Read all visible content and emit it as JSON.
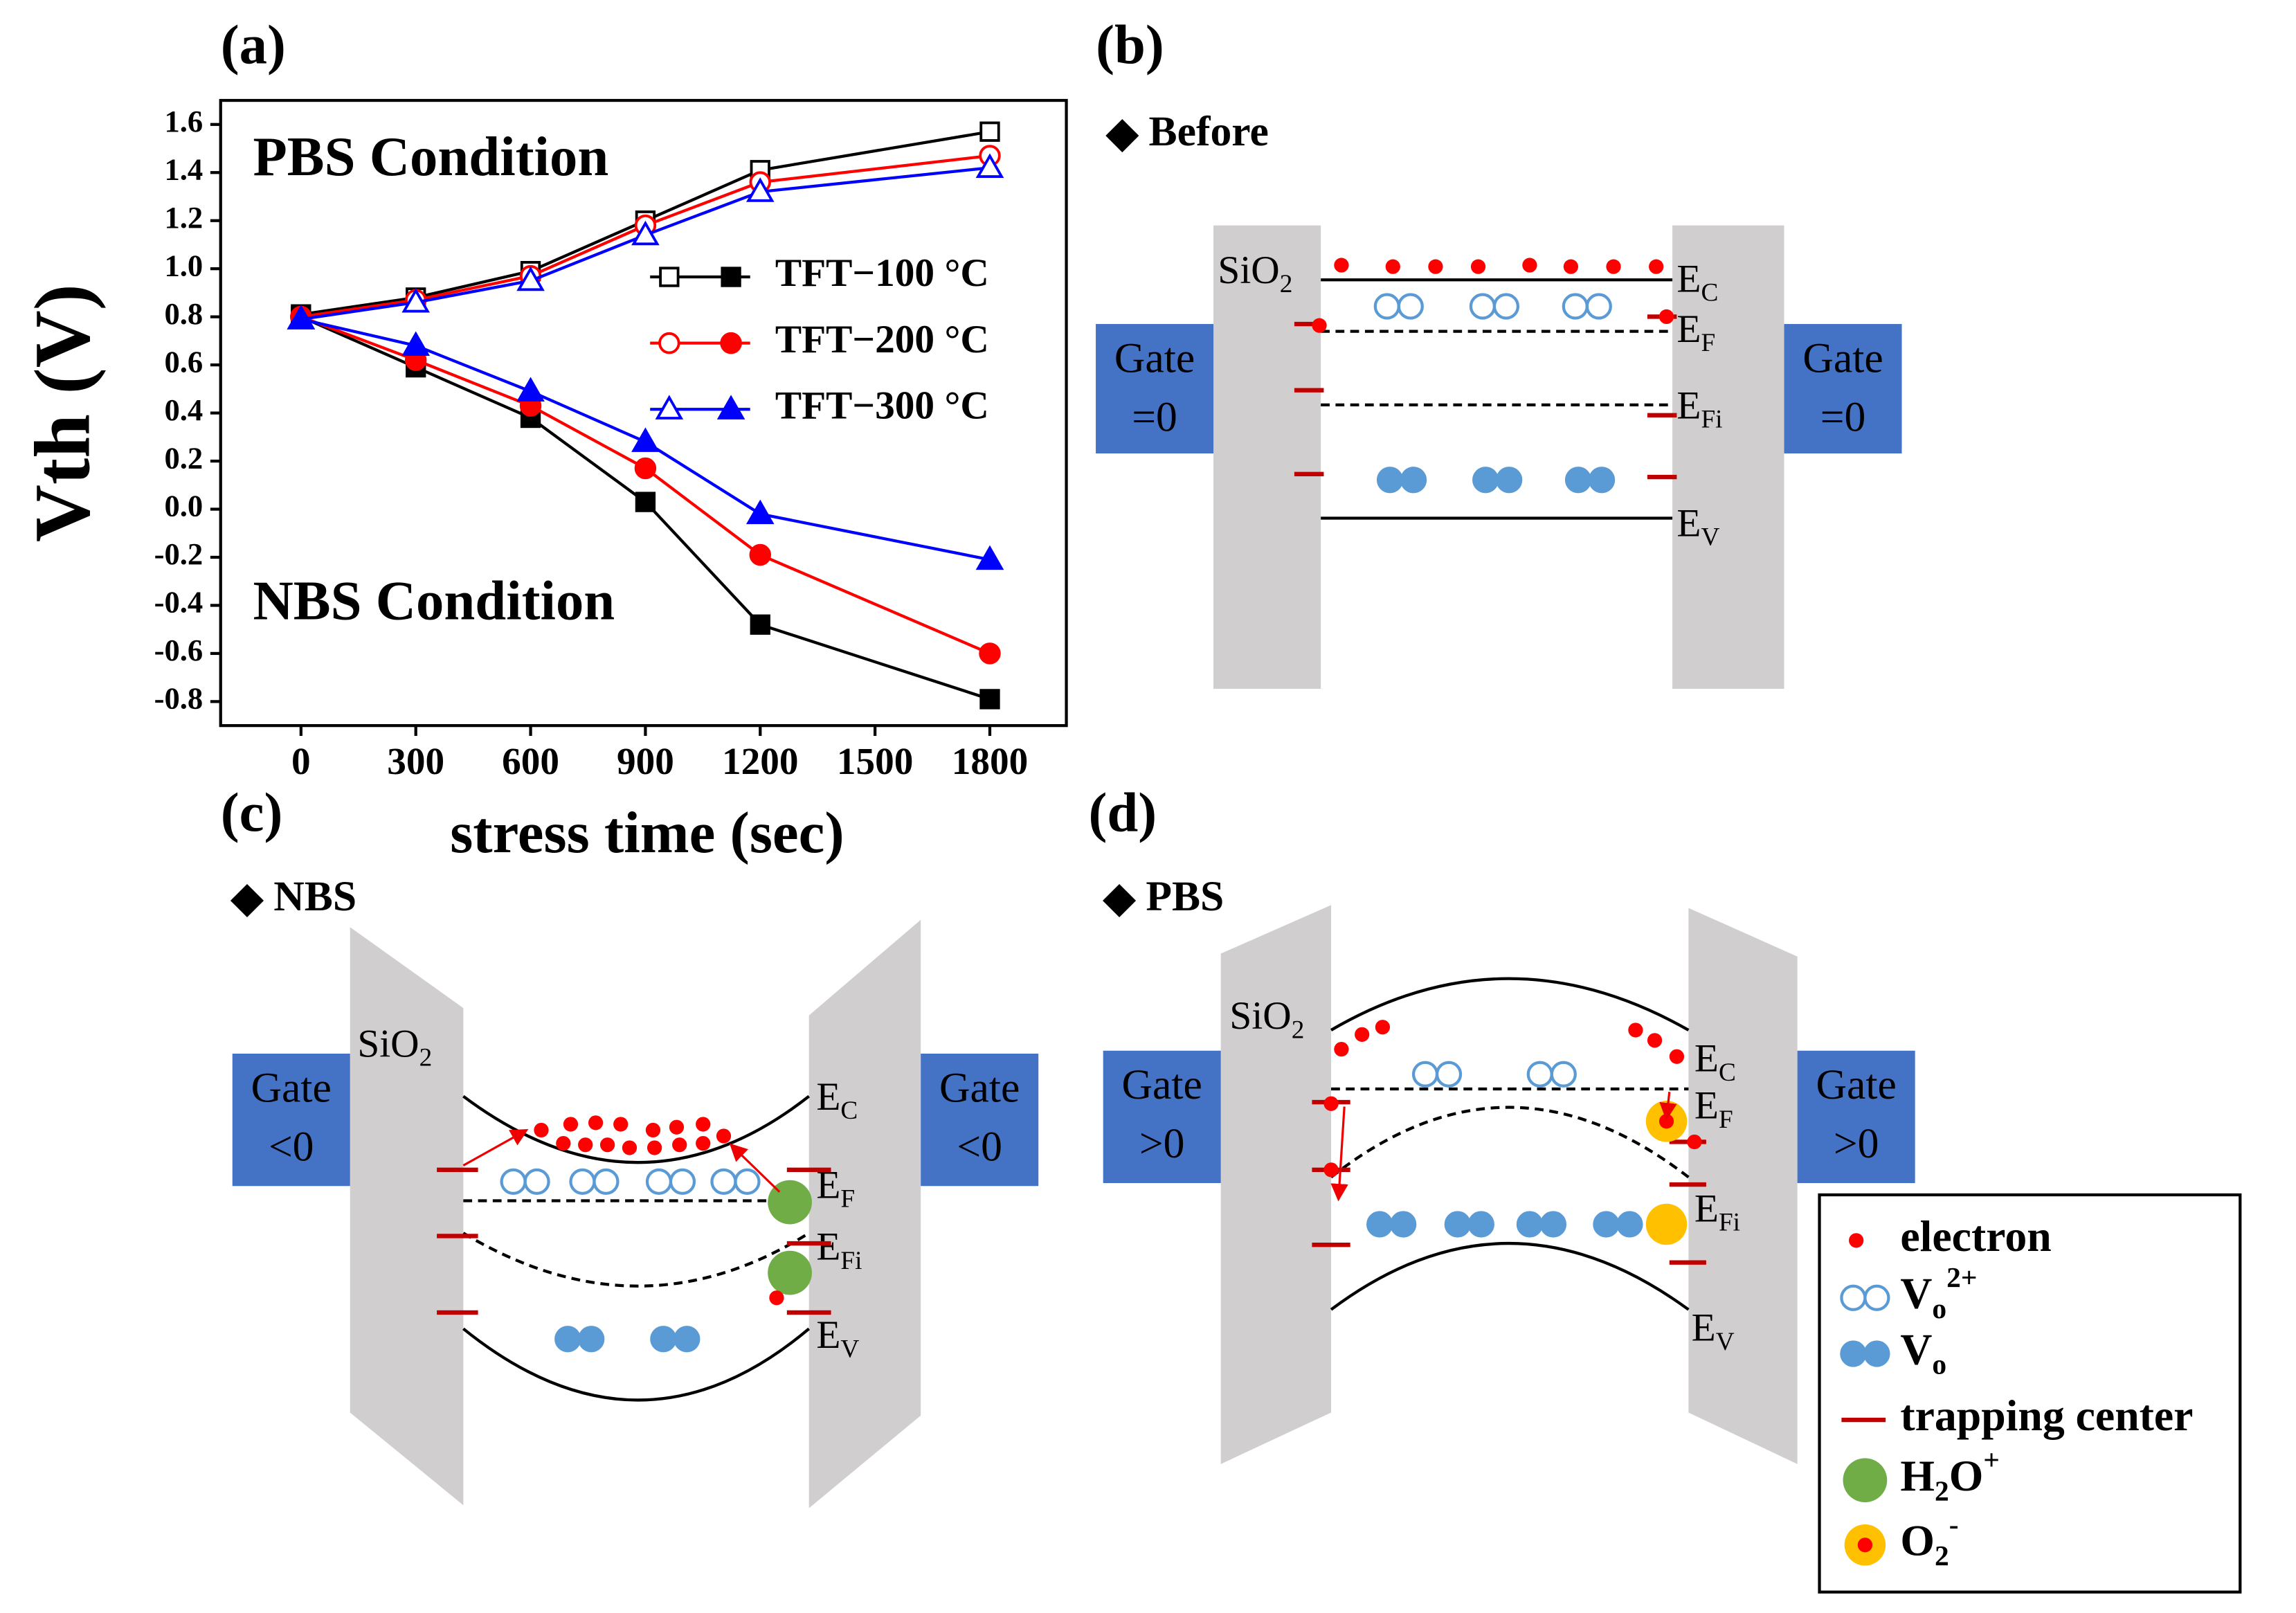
{
  "chart_data": {
    "type": "line",
    "title": "(a)",
    "ylabel": "Vth (V)",
    "xlabel": "stress time (sec)",
    "annotations": [
      "PBS Condition",
      "NBS Condition"
    ],
    "x": [
      0,
      300,
      600,
      900,
      1200,
      1800
    ],
    "xlim": [
      -210,
      2000
    ],
    "xticks": [
      0,
      300,
      600,
      900,
      1200,
      1500,
      1800
    ],
    "ylim": [
      -0.9,
      1.7
    ],
    "yticks": [
      -0.8,
      -0.6,
      -0.4,
      -0.2,
      {
        "value": 0,
        "label": "0.0"
      },
      0.2,
      0.4,
      0.6,
      0.8,
      {
        "value": 1,
        "label": "1.0"
      },
      1.2,
      1.4,
      1.6
    ],
    "legend": "center right",
    "series": [
      {
        "name": "TFT−100 °C",
        "color": "#000000",
        "marker": "square",
        "values": [
          0.81,
          0.88,
          0.99,
          1.2,
          1.41,
          1.57
        ],
        "values_nbs": [
          0.8,
          0.59,
          0.38,
          0.03,
          -0.48,
          -0.79
        ]
      },
      {
        "name": "TFT−200 °C",
        "color": "#ff0000",
        "marker": "circle",
        "values": [
          0.8,
          0.87,
          0.97,
          1.18,
          1.36,
          1.47
        ],
        "values_nbs": [
          0.8,
          0.62,
          0.43,
          0.17,
          -0.19,
          -0.6
        ]
      },
      {
        "name": "TFT−300 °C",
        "color": "#0000ff",
        "marker": "triangle",
        "values": [
          0.79,
          0.86,
          0.95,
          1.14,
          1.32,
          1.42
        ],
        "values_nbs": [
          0.79,
          0.68,
          0.49,
          0.28,
          -0.02,
          -0.21
        ]
      }
    ]
  },
  "diagrams": [
    {
      "label": "(b)",
      "title": "Before",
      "oxide": {
        "text": "SiO",
        "sub": "2"
      },
      "gate_left": [
        "Gate",
        "=0"
      ],
      "gate_right": [
        "Gate",
        "=0"
      ],
      "levels": [
        {
          "text": "E",
          "sub": "C"
        },
        {
          "text": "E",
          "sub": "F"
        },
        {
          "text": "E",
          "sub": "Fi"
        },
        {
          "text": "E",
          "sub": "V"
        }
      ]
    },
    {
      "label": "(c)",
      "title": "NBS",
      "oxide": {
        "text": "SiO",
        "sub": "2"
      },
      "gate_left": [
        "Gate",
        "<0"
      ],
      "gate_right": [
        "Gate",
        "<0"
      ],
      "levels": [
        {
          "text": "E",
          "sub": "C"
        },
        {
          "text": "E",
          "sub": "F"
        },
        {
          "text": "E",
          "sub": "Fi"
        },
        {
          "text": "E",
          "sub": "V"
        }
      ]
    },
    {
      "label": "(d)",
      "title": "PBS",
      "oxide": {
        "text": "SiO",
        "sub": "2"
      },
      "gate_left": [
        "Gate",
        ">0"
      ],
      "gate_right": [
        "Gate",
        ">0"
      ],
      "levels": [
        {
          "text": "E",
          "sub": "C"
        },
        {
          "text": "E",
          "sub": "F"
        },
        {
          "text": "E",
          "sub": "Fi"
        },
        {
          "text": "E",
          "sub": "V"
        }
      ]
    }
  ],
  "symbol_legend": [
    {
      "text": "electron"
    },
    {
      "text": "V",
      "sub": "o",
      "sup": "2+"
    },
    {
      "text": "V",
      "sub": "o"
    },
    {
      "text": "trapping center"
    },
    {
      "text": "H",
      "sub": "2",
      "rest": "O",
      "sup": "+"
    },
    {
      "text": "O",
      "sub": "2",
      "sup": "-"
    }
  ]
}
